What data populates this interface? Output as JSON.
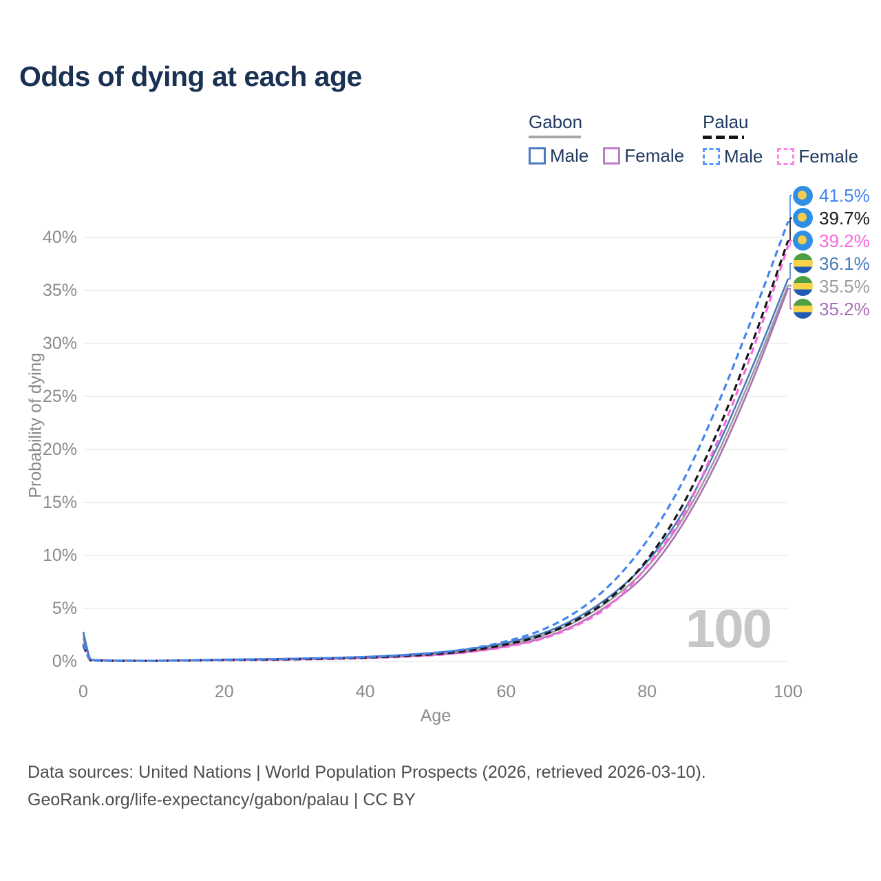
{
  "title": "Odds of dying at each age",
  "legend": {
    "groups": [
      {
        "label": "Gabon",
        "line_style": "solid",
        "underline_color": "#a8a8a8",
        "items": [
          {
            "label": "Male",
            "series": "gabon_male",
            "box_color": "#4a7bbd"
          },
          {
            "label": "Female",
            "series": "gabon_female",
            "box_color": "#bb7fc4"
          }
        ]
      },
      {
        "label": "Palau",
        "line_style": "dashed",
        "underline_color": "#151515",
        "items": [
          {
            "label": "Male",
            "series": "palau_male",
            "box_color": "#5a9af5"
          },
          {
            "label": "Female",
            "series": "palau_female",
            "box_color": "#fc86e3"
          }
        ]
      }
    ]
  },
  "chart_data": {
    "type": "line",
    "title": "Odds of dying at each age",
    "xlabel": "Age",
    "ylabel": "Probability of dying",
    "x_ticks": [
      0,
      20,
      40,
      60,
      80,
      100
    ],
    "y_ticks": [
      0,
      5,
      10,
      15,
      20,
      25,
      30,
      35,
      40
    ],
    "y_tick_suffix": "%",
    "xlim": [
      0,
      100
    ],
    "ylim": [
      0,
      43.5
    ],
    "grid": "horizontal",
    "x": [
      0,
      1,
      2,
      3,
      4,
      5,
      10,
      15,
      20,
      25,
      30,
      35,
      40,
      45,
      50,
      55,
      60,
      65,
      70,
      75,
      80,
      85,
      90,
      95,
      100
    ],
    "series": [
      {
        "id": "gabon_total",
        "name": "Gabon (both sexes)",
        "color": "#9c9c9c",
        "dash": false,
        "width": 2.6,
        "end_value_label": "35.5%",
        "values": [
          2.5,
          0.19,
          0.13,
          0.11,
          0.09,
          0.08,
          0.07,
          0.11,
          0.16,
          0.19,
          0.24,
          0.3,
          0.39,
          0.53,
          0.74,
          1.08,
          1.6,
          2.4,
          3.8,
          5.9,
          8.9,
          13.4,
          19.6,
          27.2,
          35.5
        ]
      },
      {
        "id": "gabon_female",
        "name": "Gabon Female",
        "color": "#a96fb4",
        "dash": false,
        "width": 2.6,
        "end_value_label": "35.2%",
        "values": [
          2.2,
          0.17,
          0.12,
          0.1,
          0.08,
          0.07,
          0.06,
          0.09,
          0.13,
          0.16,
          0.2,
          0.25,
          0.33,
          0.45,
          0.63,
          0.93,
          1.42,
          2.18,
          3.5,
          5.55,
          8.4,
          12.9,
          19.0,
          26.6,
          35.2
        ]
      },
      {
        "id": "gabon_male",
        "name": "Gabon Male",
        "color": "#4a7bbd",
        "dash": false,
        "width": 2.6,
        "end_value_label": "36.1%",
        "values": [
          2.8,
          0.22,
          0.15,
          0.12,
          0.1,
          0.09,
          0.08,
          0.12,
          0.18,
          0.22,
          0.27,
          0.34,
          0.44,
          0.6,
          0.84,
          1.2,
          1.78,
          2.62,
          4.1,
          6.3,
          9.4,
          14.0,
          20.3,
          27.9,
          36.1
        ]
      },
      {
        "id": "palau_female",
        "name": "Palau Female",
        "color": "#f966dd",
        "dash": true,
        "width": 3.2,
        "end_value_label": "39.2%",
        "values": [
          1.45,
          0.11,
          0.07,
          0.06,
          0.05,
          0.05,
          0.05,
          0.08,
          0.12,
          0.15,
          0.18,
          0.23,
          0.31,
          0.43,
          0.6,
          0.9,
          1.38,
          2.12,
          3.4,
          5.45,
          9.0,
          13.7,
          20.8,
          29.4,
          39.2
        ]
      },
      {
        "id": "palau_total",
        "name": "Palau (both sexes)",
        "color": "#161616",
        "dash": true,
        "width": 3.2,
        "end_value_label": "39.7%",
        "values": [
          1.55,
          0.12,
          0.08,
          0.06,
          0.05,
          0.05,
          0.05,
          0.09,
          0.14,
          0.17,
          0.21,
          0.27,
          0.36,
          0.5,
          0.7,
          1.04,
          1.6,
          2.45,
          3.9,
          6.1,
          9.6,
          14.7,
          21.7,
          30.2,
          39.7
        ]
      },
      {
        "id": "palau_male",
        "name": "Palau Male",
        "color": "#4285f0",
        "dash": true,
        "width": 3.2,
        "end_value_label": "41.5%",
        "values": [
          1.7,
          0.13,
          0.09,
          0.07,
          0.06,
          0.06,
          0.06,
          0.1,
          0.16,
          0.2,
          0.25,
          0.32,
          0.42,
          0.58,
          0.82,
          1.22,
          1.9,
          2.95,
          4.7,
          7.4,
          11.4,
          16.9,
          24.2,
          32.6,
          41.5
        ]
      }
    ]
  },
  "end_labels": [
    {
      "value": "41.5%",
      "series": "palau_male",
      "flag": "palau"
    },
    {
      "value": "39.7%",
      "series": "palau_total",
      "flag": "palau"
    },
    {
      "value": "39.2%",
      "series": "palau_female",
      "flag": "palau"
    },
    {
      "value": "36.1%",
      "series": "gabon_male",
      "flag": "gabon"
    },
    {
      "value": "35.5%",
      "series": "gabon_total",
      "flag": "gabon"
    },
    {
      "value": "35.2%",
      "series": "gabon_female",
      "flag": "gabon"
    }
  ],
  "flags": {
    "palau": {
      "background": "#2f8fe5",
      "moon": "#f3cd4e"
    },
    "gabon": {
      "stripes": [
        "#4f9e43",
        "#f7d44a",
        "#1f5bb4"
      ]
    }
  },
  "watermark": "100",
  "footer": {
    "line1": "Data sources: United Nations | World Population Prospects (2026, retrieved 2026-03-10).",
    "line2": "GeoRank.org/life-expectancy/gabon/palau | CC BY"
  }
}
